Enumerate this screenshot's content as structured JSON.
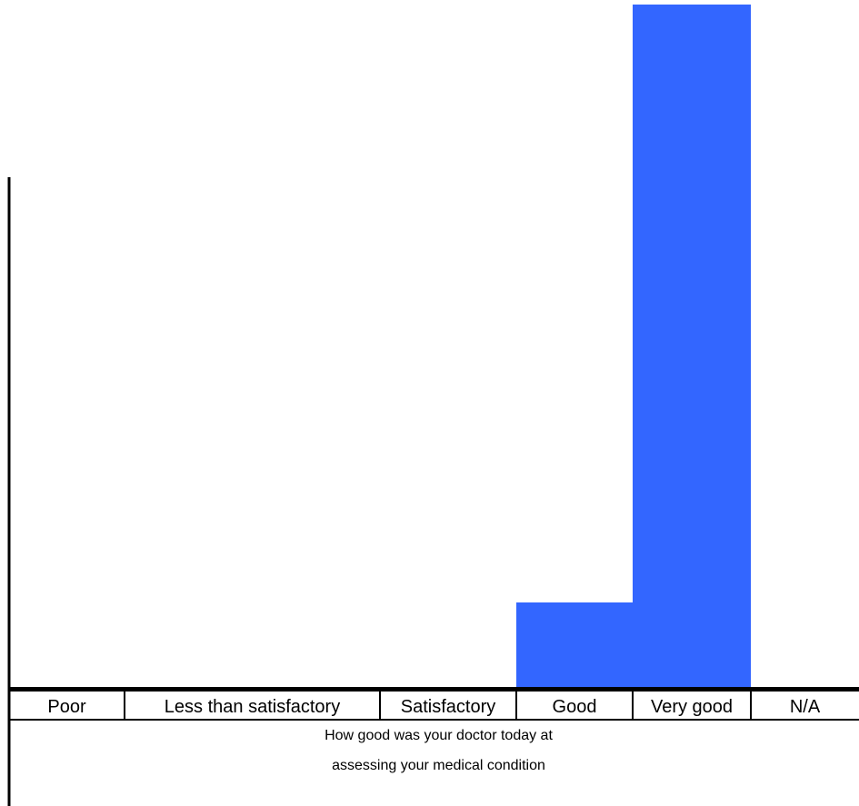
{
  "chart_data": {
    "type": "bar",
    "categories": [
      "Poor",
      "Less than satisfactory",
      "Satisfactory",
      "Good",
      "Very good",
      "N/A"
    ],
    "values": [
      0,
      0,
      0,
      1,
      8,
      0
    ],
    "xlabel": [
      "How good was your doctor today at",
      "assessing your medical condition"
    ],
    "bar_color": "#3366ff",
    "axis_color": "#000000",
    "grid": false
  }
}
